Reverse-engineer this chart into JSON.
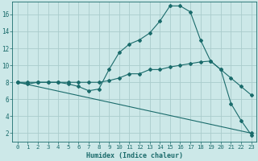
{
  "xlabel": "Humidex (Indice chaleur)",
  "background_color": "#cce8e8",
  "grid_color": "#aacccc",
  "line_color": "#1a6b6b",
  "xlim": [
    -0.5,
    23.5
  ],
  "ylim": [
    1.0,
    17.5
  ],
  "yticks": [
    2,
    4,
    6,
    8,
    10,
    12,
    14,
    16
  ],
  "xticks": [
    0,
    1,
    2,
    3,
    4,
    5,
    6,
    7,
    8,
    9,
    10,
    11,
    12,
    13,
    14,
    15,
    16,
    17,
    18,
    19,
    20,
    21,
    22,
    23
  ],
  "line1_x": [
    0,
    1,
    2,
    3,
    4,
    5,
    6,
    7,
    8,
    9,
    10,
    11,
    12,
    13,
    14,
    15,
    16,
    17,
    18,
    19,
    20,
    21,
    22,
    23
  ],
  "line1_y": [
    8.0,
    7.8,
    8.0,
    8.0,
    8.0,
    7.8,
    7.5,
    7.0,
    7.2,
    9.5,
    11.5,
    12.5,
    13.0,
    13.8,
    15.2,
    17.0,
    17.0,
    16.3,
    13.0,
    10.5,
    9.5,
    5.5,
    3.5,
    1.8
  ],
  "line2_x": [
    0,
    1,
    2,
    3,
    4,
    5,
    6,
    7,
    8,
    9,
    10,
    11,
    12,
    13,
    14,
    15,
    16,
    17,
    18,
    19,
    20,
    21,
    22,
    23
  ],
  "line2_y": [
    8.0,
    8.0,
    8.0,
    8.0,
    8.0,
    8.0,
    8.0,
    8.0,
    8.0,
    8.2,
    8.5,
    9.0,
    9.0,
    9.5,
    9.5,
    9.8,
    10.0,
    10.2,
    10.4,
    10.5,
    9.5,
    8.5,
    7.5,
    6.5
  ],
  "line3_x": [
    0,
    23
  ],
  "line3_y": [
    8.0,
    2.0
  ]
}
